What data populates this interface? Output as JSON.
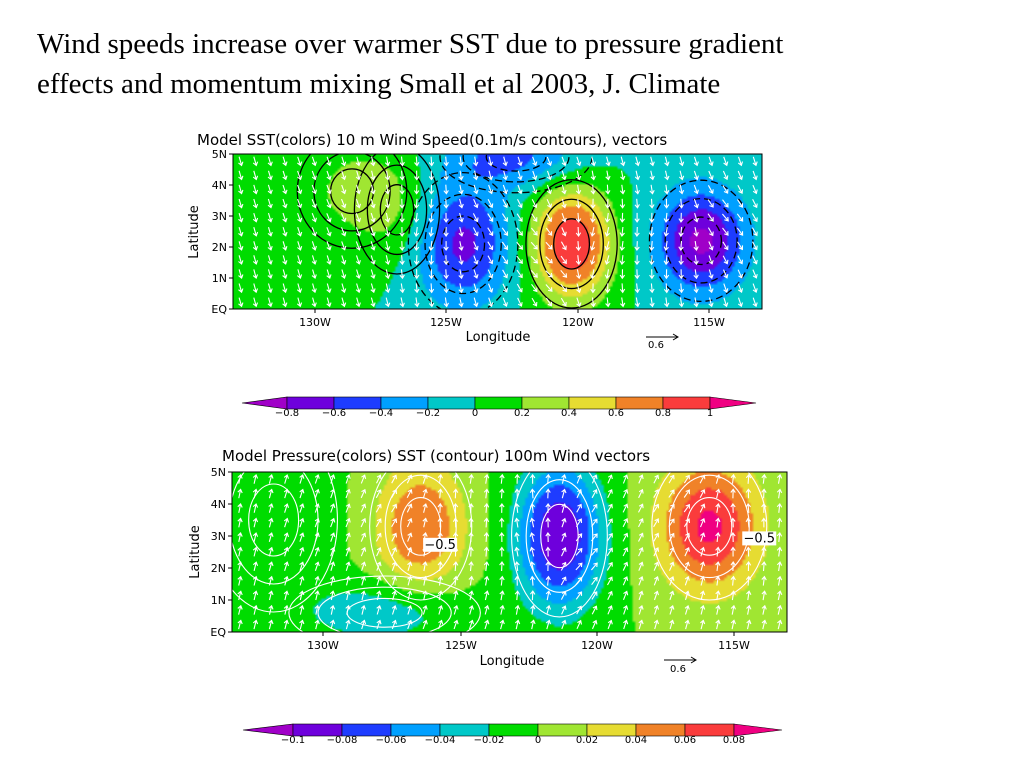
{
  "slide": {
    "title_line1": "Wind speeds increase over warmer SST due to pressure gradient",
    "title_line2": "effects and momentum mixing Small et al 2003, J. Climate"
  },
  "chart_data": [
    {
      "type": "heatmap",
      "title": "Model SST(colors)  10 m  Wind Speed(0.1m/s contours), vectors",
      "xlabel": "Longitude",
      "ylabel": "Latitude",
      "x_ticks": [
        "130W",
        "125W",
        "120W",
        "115W"
      ],
      "x_tick_values": [
        -130,
        -125,
        -120,
        -115
      ],
      "y_ticks": [
        "EQ",
        "1N",
        "2N",
        "3N",
        "4N",
        "5N"
      ],
      "y_tick_values": [
        0,
        1,
        2,
        3,
        4,
        5
      ],
      "xlim": [
        -133,
        -113
      ],
      "ylim": [
        0,
        5
      ],
      "contour_variable": "10 m wind speed",
      "vector_reference": {
        "label": "0.6",
        "value": 0.6
      },
      "colorbar": {
        "labels": [
          "−0.8",
          "−0.6",
          "−0.4",
          "−0.2",
          "0",
          "0.2",
          "0.4",
          "0.6",
          "0.8",
          "1"
        ],
        "colors": [
          "#a000c8",
          "#6e00dc",
          "#1e3cff",
          "#00a0ff",
          "#00c8c8",
          "#00dc00",
          "#a0e632",
          "#e6dc32",
          "#f08228",
          "#fa3c3c",
          "#f00082"
        ]
      },
      "anomaly_centers": [
        {
          "lon": -128.5,
          "lat": 3.8,
          "amp": 0.25,
          "rx": 1.8,
          "ry": 1.6
        },
        {
          "lon": -126.8,
          "lat": 3.2,
          "amp": 0.2,
          "rx": 1.4,
          "ry": 1.8
        },
        {
          "lon": -124.3,
          "lat": 2.1,
          "amp": -0.65,
          "rx": 1.8,
          "ry": 2.0
        },
        {
          "lon": -120.2,
          "lat": 2.1,
          "amp": 1.0,
          "rx": 1.5,
          "ry": 1.8
        },
        {
          "lon": -115.3,
          "lat": 2.2,
          "amp": -0.85,
          "rx": 1.7,
          "ry": 1.7
        },
        {
          "lon": -122.3,
          "lat": 4.9,
          "amp": -0.45,
          "rx": 2.5,
          "ry": 1.0
        }
      ]
    },
    {
      "type": "heatmap",
      "title": "Model Pressure(colors) SST (contour)   100m  Wind vectors",
      "xlabel": "Longitude",
      "ylabel": "Latitude",
      "x_ticks": [
        "130W",
        "125W",
        "120W",
        "115W"
      ],
      "x_tick_values": [
        -130,
        -125,
        -120,
        -115
      ],
      "y_ticks": [
        "EQ",
        "1N",
        "2N",
        "3N",
        "4N",
        "5N"
      ],
      "y_tick_values": [
        0,
        1,
        2,
        3,
        4,
        5
      ],
      "xlim": [
        -133,
        -113
      ],
      "ylim": [
        0,
        5
      ],
      "contour_variable": "SST",
      "contour_labels": [
        {
          "text": "−0.5",
          "lon": -125.5,
          "lat": 2.6
        },
        {
          "text": "−0.5",
          "lon": -114.0,
          "lat": 2.8
        }
      ],
      "vector_reference": {
        "label": "0.6",
        "value": 0.6
      },
      "colorbar": {
        "labels": [
          "−0.1",
          "−0.08",
          "−0.06",
          "−0.04",
          "−0.02",
          "0",
          "0.02",
          "0.04",
          "0.06",
          "0.08"
        ],
        "colors": [
          "#a000c8",
          "#6e00dc",
          "#1e3cff",
          "#00a0ff",
          "#00c8c8",
          "#00dc00",
          "#a0e632",
          "#e6dc32",
          "#f08228",
          "#fa3c3c",
          "#f00082"
        ]
      },
      "anomaly_centers": [
        {
          "lon": -131.5,
          "lat": 3.5,
          "amp": -0.02,
          "rx": 2.0,
          "ry": 2.5
        },
        {
          "lon": -126.2,
          "lat": 3.3,
          "amp": 0.06,
          "rx": 1.6,
          "ry": 2.0
        },
        {
          "lon": -121.2,
          "lat": 3.0,
          "amp": -0.1,
          "rx": 1.5,
          "ry": 2.2
        },
        {
          "lon": -115.8,
          "lat": 3.3,
          "amp": 0.085,
          "rx": 1.8,
          "ry": 2.0
        },
        {
          "lon": -127.5,
          "lat": 0.6,
          "amp": -0.035,
          "rx": 3.0,
          "ry": 1.0
        }
      ]
    }
  ]
}
